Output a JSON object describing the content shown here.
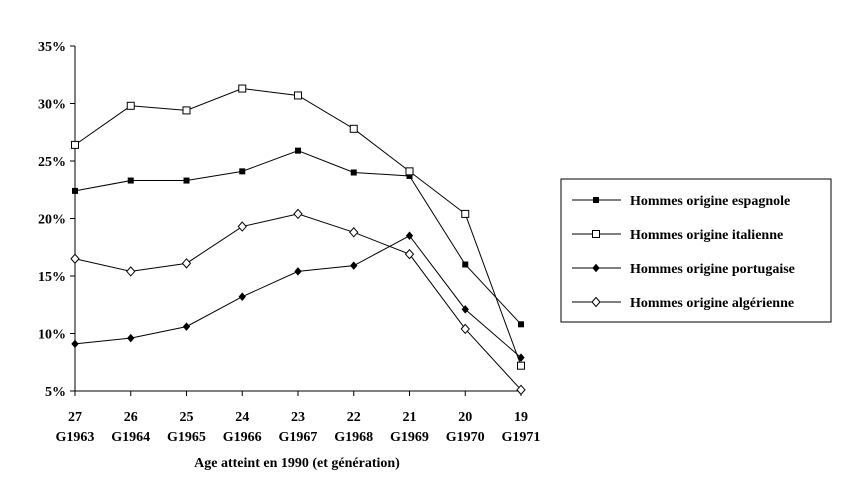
{
  "chart_data": {
    "type": "line",
    "xlabel": "Age atteint en 1990 (et génération)",
    "ylabel": "",
    "ylim": [
      5,
      35
    ],
    "yticks": [
      "35%",
      "30%",
      "25%",
      "20%",
      "15%",
      "10%",
      "5%"
    ],
    "categories": [
      {
        "age": "27",
        "gen": "G1963"
      },
      {
        "age": "26",
        "gen": "G1964"
      },
      {
        "age": "25",
        "gen": "G1965"
      },
      {
        "age": "24",
        "gen": "G1966"
      },
      {
        "age": "23",
        "gen": "G1967"
      },
      {
        "age": "22",
        "gen": "G1968"
      },
      {
        "age": "21",
        "gen": "G1969"
      },
      {
        "age": "20",
        "gen": "G1970"
      },
      {
        "age": "19",
        "gen": "G1971"
      }
    ],
    "grid": false,
    "legend_position": "right",
    "series": [
      {
        "name": "Hommes origine espagnole",
        "marker": "filled-square",
        "color": "#000000",
        "values": [
          22.4,
          23.3,
          23.3,
          24.1,
          25.9,
          24.0,
          23.7,
          16.0,
          10.8
        ]
      },
      {
        "name": "Hommes origine italienne",
        "marker": "open-square",
        "color": "#000000",
        "values": [
          26.4,
          29.8,
          29.4,
          31.3,
          30.7,
          27.8,
          24.1,
          20.4,
          7.2
        ]
      },
      {
        "name": "Hommes origine portugaise",
        "marker": "filled-diamond",
        "color": "#000000",
        "values": [
          9.1,
          9.6,
          10.6,
          13.2,
          15.4,
          15.9,
          18.5,
          12.1,
          7.9
        ]
      },
      {
        "name": "Hommes origine algérienne",
        "marker": "open-diamond",
        "color": "#000000",
        "values": [
          16.5,
          15.4,
          16.1,
          19.3,
          20.4,
          18.8,
          16.9,
          10.4,
          5.1
        ]
      }
    ]
  }
}
